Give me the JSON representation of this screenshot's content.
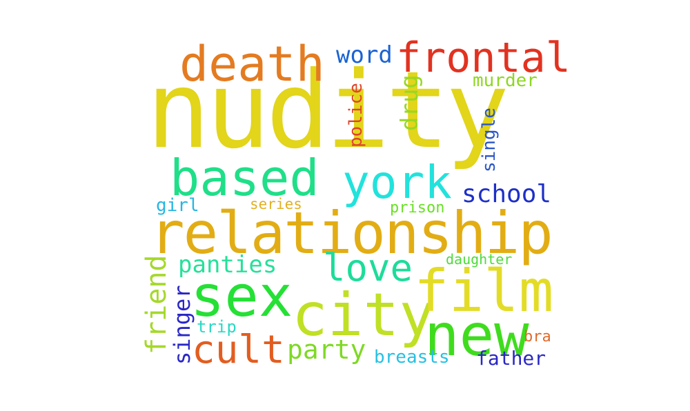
{
  "words": [
    {
      "text": "nudity",
      "color": "#e2d51a"
    },
    {
      "text": "relationship",
      "color": "#e2ad14"
    },
    {
      "text": "death",
      "color": "#e47b21"
    },
    {
      "text": "frontal",
      "color": "#e23220"
    },
    {
      "text": "word",
      "color": "#1b63d2"
    },
    {
      "text": "murder",
      "color": "#8ed722"
    },
    {
      "text": "drug",
      "color": "#98d823"
    },
    {
      "text": "police",
      "color": "#e0442a"
    },
    {
      "text": "single",
      "color": "#2a55c8"
    },
    {
      "text": "based",
      "color": "#1fdf88"
    },
    {
      "text": "york",
      "color": "#22e2dc"
    },
    {
      "text": "school",
      "color": "#1d2fc8"
    },
    {
      "text": "girl",
      "color": "#27b6e2"
    },
    {
      "text": "series",
      "color": "#e2b024"
    },
    {
      "text": "prison",
      "color": "#69e024"
    },
    {
      "text": "panties",
      "color": "#26e09a"
    },
    {
      "text": "love",
      "color": "#1ddc9a"
    },
    {
      "text": "daughter",
      "color": "#4cdc3a"
    },
    {
      "text": "friend",
      "color": "#a5d82a"
    },
    {
      "text": "sex",
      "color": "#25e035"
    },
    {
      "text": "city",
      "color": "#bfe024"
    },
    {
      "text": "film",
      "color": "#e3dc27"
    },
    {
      "text": "new",
      "color": "#3fdc1e"
    },
    {
      "text": "singer",
      "color": "#2b28c6"
    },
    {
      "text": "trip",
      "color": "#2bd8c4"
    },
    {
      "text": "cult",
      "color": "#e25d20"
    },
    {
      "text": "party",
      "color": "#7ed924"
    },
    {
      "text": "bra",
      "color": "#e06a2c"
    },
    {
      "text": "breasts",
      "color": "#27c0e2"
    },
    {
      "text": "father",
      "color": "#2a27c4"
    }
  ]
}
